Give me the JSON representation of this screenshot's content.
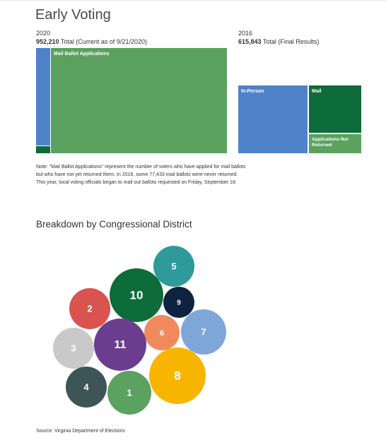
{
  "header": {
    "title": "Early Voting"
  },
  "panels": [
    {
      "year": "2020",
      "total": "952,210",
      "total_note": "Total (Current as of 9/21/2020)",
      "blocks": [
        "Mail Ballot Applications"
      ]
    },
    {
      "year": "2016",
      "total": "615,843",
      "total_note": "Total (Final Results)",
      "blocks": [
        "In-Person",
        "Mail",
        "Applications Not Returned"
      ]
    }
  ],
  "note": "Note: \"Mail Ballot Applications\" represent the number of voters who have applied for mail ballots but who have not yet returned them. In 2016, some 77,433 mail ballots were never returned. This year, local voting officials began to mail out ballots requested on Friday, September 18.",
  "breakdown": {
    "title": "Breakdown by Congressional District",
    "districts": [
      "5",
      "10",
      "9",
      "2",
      "6",
      "7",
      "3",
      "11",
      "8",
      "4",
      "1"
    ]
  },
  "source": "Source: Virginia Department of Elections"
}
